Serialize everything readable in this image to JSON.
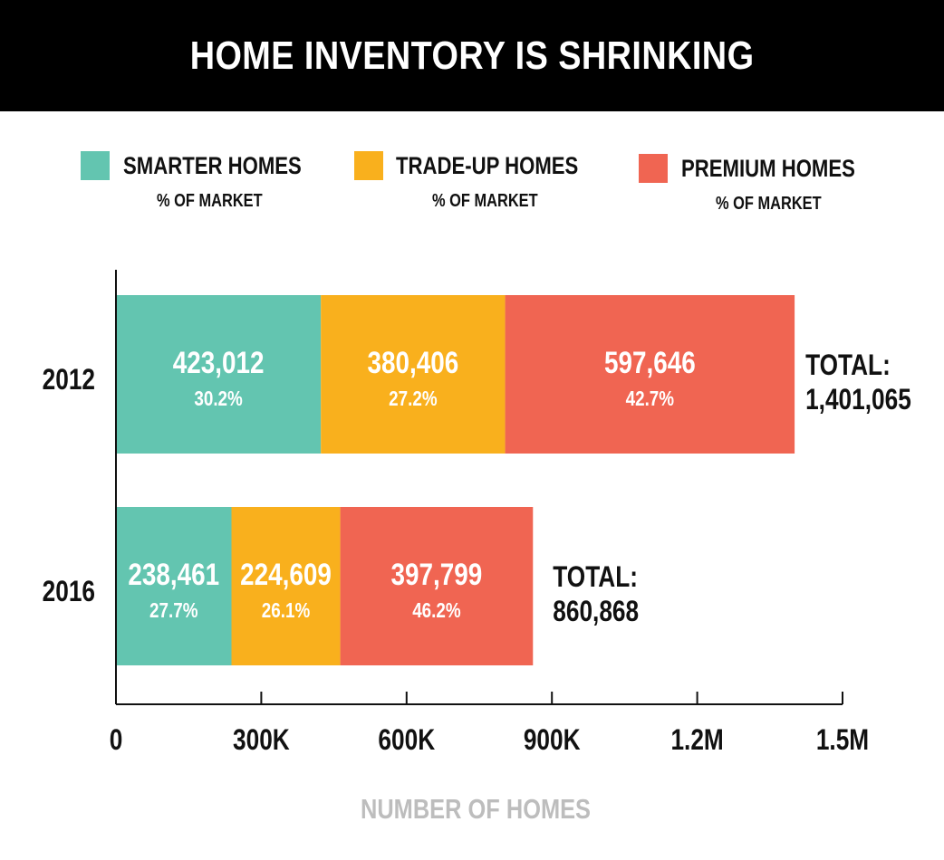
{
  "title": "HOME INVENTORY IS SHRINKING",
  "colors": {
    "smarter": "#63c5b0",
    "tradeup": "#f9b01d",
    "premium": "#f06552",
    "banner": "#000000",
    "axis": "#111111",
    "xlabel": "#bdbdbd"
  },
  "legend": [
    {
      "name": "SMARTER HOMES",
      "sub": "% OF MARKET",
      "color": "#63c5b0"
    },
    {
      "name": "TRADE-UP HOMES",
      "sub": "% OF MARKET",
      "color": "#f9b01d"
    },
    {
      "name": "PREMIUM HOMES",
      "sub": "% OF MARKET",
      "color": "#f06552"
    }
  ],
  "chart_data": {
    "type": "bar",
    "orientation": "horizontal",
    "stacked": true,
    "title": "HOME INVENTORY IS SHRINKING",
    "xlabel": "NUMBER OF HOMES",
    "ylabel": "",
    "xlim": [
      0,
      1500000
    ],
    "xticks": [
      {
        "value": 0,
        "label": "0"
      },
      {
        "value": 300000,
        "label": "300K"
      },
      {
        "value": 600000,
        "label": "600K"
      },
      {
        "value": 900000,
        "label": "900K"
      },
      {
        "value": 1200000,
        "label": "1.2M"
      },
      {
        "value": 1500000,
        "label": "1.5M"
      }
    ],
    "categories": [
      "2012",
      "2016"
    ],
    "series": [
      {
        "name": "SMARTER HOMES",
        "values": [
          423012,
          238461
        ],
        "labels": [
          "423,012",
          "238,461"
        ],
        "pct": [
          "30.2%",
          "27.7%"
        ]
      },
      {
        "name": "TRADE-UP HOMES",
        "values": [
          380406,
          224609
        ],
        "labels": [
          "380,406",
          "224,609"
        ],
        "pct": [
          "27.2%",
          "26.1%"
        ]
      },
      {
        "name": "PREMIUM HOMES",
        "values": [
          597646,
          397799
        ],
        "labels": [
          "597,646",
          "397,799"
        ],
        "pct": [
          "42.7%",
          "46.2%"
        ]
      }
    ],
    "totals": [
      {
        "label": "TOTAL:",
        "value": "1,401,065"
      },
      {
        "label": "TOTAL:",
        "value": "860,868"
      }
    ],
    "grid": false,
    "legend_position": "top"
  }
}
